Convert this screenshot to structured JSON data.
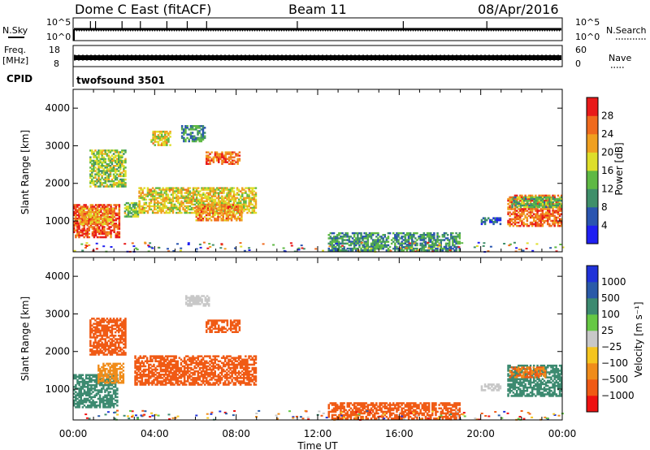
{
  "header": {
    "station": "Dome C East (fitACF)",
    "beam": "Beam 11",
    "date": "08/Apr/2016"
  },
  "strips": {
    "nsky": {
      "label": "N.Sky",
      "ticks": [
        "10^5",
        "10^0"
      ]
    },
    "nsearch": {
      "label": "N.Search",
      "ticks": [
        "10^5",
        "10^0"
      ]
    },
    "freq": {
      "label_line1": "Freq.",
      "label_line2": "[MHz]",
      "ticks": [
        "18",
        "8"
      ]
    },
    "nave": {
      "label": "Nave",
      "ticks": [
        "60",
        "0"
      ]
    },
    "cpid": {
      "label": "CPID",
      "value": "twofsound 3501"
    }
  },
  "colors": {
    "power": [
      "#1f1ff2",
      "#2a55b0",
      "#3f8f6a",
      "#5fb944",
      "#dede2a",
      "#f0a020",
      "#ef6a1e",
      "#e81a1a"
    ],
    "velocity": [
      "#ee1111",
      "#f05a14",
      "#f08c1a",
      "#f5c51f",
      "#c8c8c8",
      "#66c844",
      "#3c8a70",
      "#2a5aa8",
      "#2032d8"
    ]
  },
  "chart_data": [
    {
      "type": "heatmap",
      "panel": "power",
      "ylabel": "Slant Range [km]",
      "ylim": [
        180,
        4500
      ],
      "yticks": [
        "4000",
        "3000",
        "2000",
        "1000"
      ],
      "xticks": [
        "00:00",
        "04:00",
        "08:00",
        "12:00",
        "16:00",
        "20:00",
        "00:00"
      ],
      "xlim_hours": [
        0,
        24
      ],
      "colorbar": {
        "label": "Power [dB]",
        "ticks": [
          "28",
          "24",
          "20",
          "16",
          "12",
          "8",
          "4"
        ],
        "range": [
          0,
          30
        ]
      },
      "regions": [
        {
          "t": [
            0.0,
            2.3
          ],
          "r": [
            550,
            1450
          ],
          "value": 26
        },
        {
          "t": [
            0.3,
            2.0
          ],
          "r": [
            900,
            1350
          ],
          "value": 20
        },
        {
          "t": [
            2.5,
            3.3
          ],
          "r": [
            1100,
            1500
          ],
          "value": 14
        },
        {
          "t": [
            3.2,
            9.0
          ],
          "r": [
            1200,
            1900
          ],
          "value": 18
        },
        {
          "t": [
            6.0,
            8.3
          ],
          "r": [
            1000,
            1450
          ],
          "value": 22
        },
        {
          "t": [
            5.3,
            6.5
          ],
          "r": [
            3100,
            3550
          ],
          "value": 10
        },
        {
          "t": [
            6.5,
            8.2
          ],
          "r": [
            2500,
            2850
          ],
          "value": 24
        },
        {
          "t": [
            0.8,
            2.6
          ],
          "r": [
            1900,
            2900
          ],
          "value": 15
        },
        {
          "t": [
            3.8,
            4.8
          ],
          "r": [
            3000,
            3400
          ],
          "value": 18
        },
        {
          "t": [
            12.5,
            19.0
          ],
          "r": [
            200,
            700
          ],
          "value": 10
        },
        {
          "t": [
            20.0,
            21.0
          ],
          "r": [
            900,
            1100
          ],
          "value": 6
        },
        {
          "t": [
            21.3,
            24.0
          ],
          "r": [
            850,
            1700
          ],
          "value": 24
        },
        {
          "t": [
            21.5,
            24.0
          ],
          "r": [
            1350,
            1650
          ],
          "value": 12
        }
      ]
    },
    {
      "type": "heatmap",
      "panel": "velocity",
      "ylabel": "Slant Range [km]",
      "ylim": [
        180,
        4500
      ],
      "yticks": [
        "4000",
        "3000",
        "2000",
        "1000"
      ],
      "xticks": [
        "00:00",
        "04:00",
        "08:00",
        "12:00",
        "16:00",
        "20:00",
        "00:00"
      ],
      "xlim_hours": [
        0,
        24
      ],
      "xlabel": "Time UT",
      "colorbar": {
        "label": "Velocity [m s⁻¹]",
        "ticks": [
          "1000",
          "500",
          "100",
          "25",
          "−25",
          "−100",
          "−500",
          "−1000"
        ]
      },
      "regions": [
        {
          "t": [
            0.0,
            2.2
          ],
          "r": [
            500,
            1400
          ],
          "value": 150
        },
        {
          "t": [
            1.2,
            2.5
          ],
          "r": [
            1150,
            1700
          ],
          "value": -80
        },
        {
          "t": [
            3.0,
            9.0
          ],
          "r": [
            1100,
            1900
          ],
          "value": -200
        },
        {
          "t": [
            5.5,
            6.7
          ],
          "r": [
            3200,
            3500
          ],
          "value": 20
        },
        {
          "t": [
            6.5,
            8.2
          ],
          "r": [
            2500,
            2850
          ],
          "value": -150
        },
        {
          "t": [
            0.8,
            2.6
          ],
          "r": [
            1900,
            2900
          ],
          "value": -120
        },
        {
          "t": [
            12.5,
            19.0
          ],
          "r": [
            200,
            650
          ],
          "value": -250
        },
        {
          "t": [
            20.0,
            21.0
          ],
          "r": [
            950,
            1150
          ],
          "value": 20
        },
        {
          "t": [
            21.3,
            24.0
          ],
          "r": [
            800,
            1650
          ],
          "value": 300
        },
        {
          "t": [
            21.4,
            23.2
          ],
          "r": [
            1300,
            1600
          ],
          "value": -100
        }
      ]
    }
  ]
}
